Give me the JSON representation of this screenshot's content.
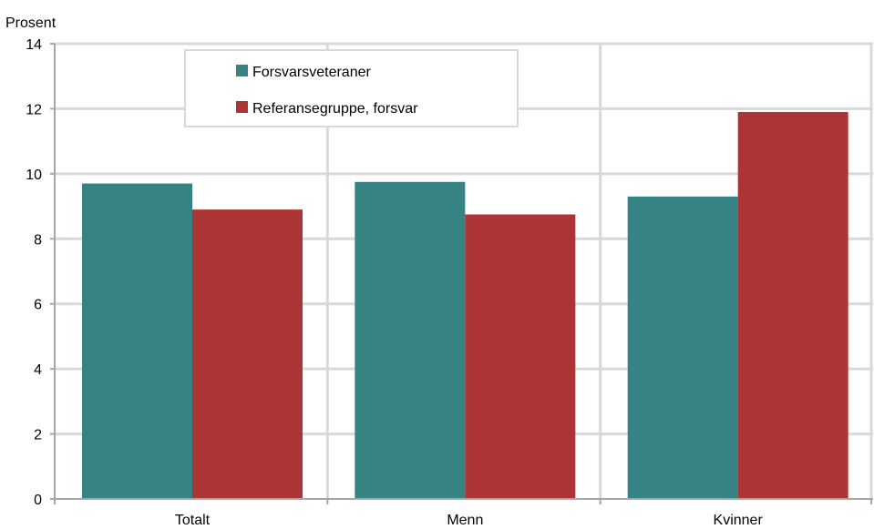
{
  "chart_data": {
    "type": "bar",
    "y_unit_label": "Prosent",
    "categories": [
      "Totalt",
      "Menn",
      "Kvinner"
    ],
    "series": [
      {
        "name": "Forsvarsveteraner",
        "color": "#358483",
        "values": [
          9.7,
          9.75,
          9.3
        ]
      },
      {
        "name": "Referansegruppe, forsvar",
        "color": "#ad3434",
        "values": [
          8.9,
          8.75,
          11.9
        ]
      }
    ],
    "ylim": [
      0,
      14
    ],
    "yticks": [
      0,
      2,
      4,
      6,
      8,
      10,
      12,
      14
    ],
    "grid": true,
    "legend_position": "top-left"
  }
}
